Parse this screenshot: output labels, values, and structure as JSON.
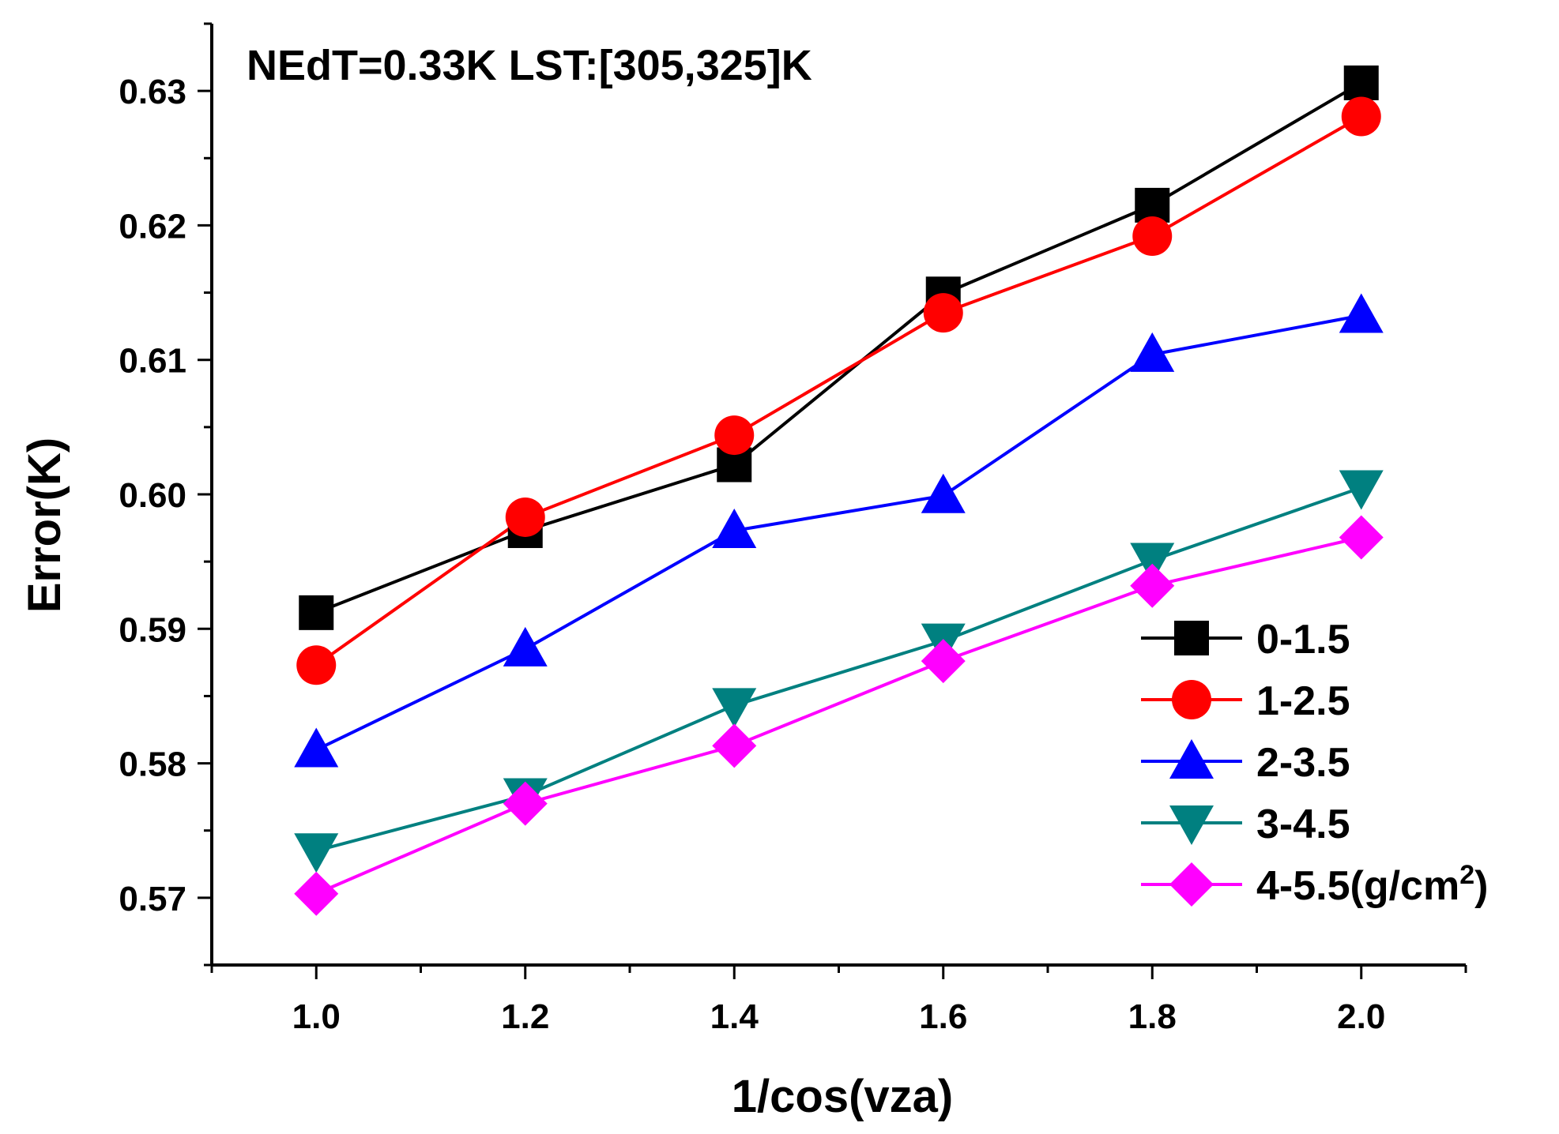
{
  "chart_data": {
    "type": "line",
    "title": "NEdT=0.33K LST:[305,325]K",
    "xlabel": "1/cos(vza)",
    "ylabel": "Error(K)",
    "x": [
      1.0,
      1.2,
      1.4,
      1.6,
      1.8,
      2.0
    ],
    "xlim": [
      0.9,
      2.1
    ],
    "ylim": [
      0.565,
      0.635
    ],
    "x_ticks": [
      "1.0",
      "1.2",
      "1.4",
      "1.6",
      "1.8",
      "2.0"
    ],
    "y_ticks": [
      "0.57",
      "0.58",
      "0.59",
      "0.60",
      "0.61",
      "0.62",
      "0.63"
    ],
    "legend_position": "bottom-right",
    "series": [
      {
        "name": "0-1.5",
        "color": "#000000",
        "marker": "square",
        "values": [
          0.5912,
          0.5973,
          0.6022,
          0.6149,
          0.6215,
          0.6306
        ]
      },
      {
        "name": "1-2.5",
        "color": "#ff0000",
        "marker": "circle",
        "values": [
          0.5873,
          0.5983,
          0.6044,
          0.6135,
          0.6192,
          0.6281
        ]
      },
      {
        "name": "2-3.5",
        "color": "#0000ff",
        "marker": "triangle-up",
        "values": [
          0.581,
          0.5885,
          0.5973,
          0.5999,
          0.6104,
          0.6133
        ]
      },
      {
        "name": "3-4.5",
        "color": "#008080",
        "marker": "triangle-down",
        "values": [
          0.5735,
          0.5776,
          0.5843,
          0.5891,
          0.5951,
          0.6005
        ]
      },
      {
        "name": "4-5.5",
        "name_suffix": "(g/cm",
        "superscript": "2",
        "name_end": ")",
        "color": "#ff00ff",
        "marker": "diamond",
        "values": [
          0.5703,
          0.577,
          0.5813,
          0.5876,
          0.5932,
          0.5968
        ]
      }
    ]
  }
}
